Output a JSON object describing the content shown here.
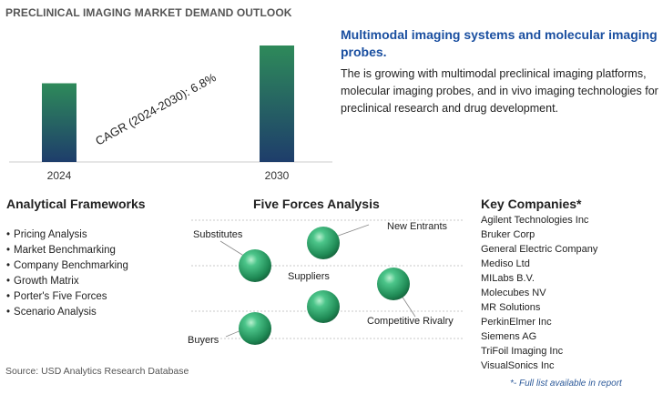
{
  "title": "PRECLINICAL IMAGING MARKET DEMAND OUTLOOK",
  "headline": "Multimodal imaging systems and molecular imaging probes.",
  "description": "The is growing with multimodal preclinical imaging platforms, molecular imaging probes, and in vivo imaging technologies for preclinical research and drug development.",
  "chart_data": {
    "type": "bar",
    "categories": [
      "2024",
      "2030"
    ],
    "values": [
      1.0,
      1.48
    ],
    "title": "",
    "xlabel": "",
    "ylabel": "",
    "annotation": {
      "label": "CAGR (2024-2030):",
      "value": "6.8%"
    },
    "colors": {
      "bar_top": "#2e8a5a",
      "bar_bottom": "#1e3d6b"
    }
  },
  "frameworks": {
    "title": "Analytical Frameworks",
    "items": [
      "Pricing Analysis",
      "Market Benchmarking",
      "Company Benchmarking",
      "Growth Matrix",
      "Porter's Five Forces",
      "Scenario Analysis"
    ]
  },
  "five_forces": {
    "title": "Five Forces Analysis",
    "labels": {
      "substitutes": "Substitutes",
      "new_entrants": "New Entrants",
      "suppliers": "Suppliers",
      "competitive_rivalry": "Competitive Rivalry",
      "buyers": "Buyers"
    },
    "sphere_color": "#2ea36a"
  },
  "companies": {
    "title": "Key Companies*",
    "items": [
      "Agilent Technologies Inc",
      "Bruker Corp",
      "General Electric Company",
      "Mediso Ltd",
      "MILabs B.V.",
      "Molecubes NV",
      "MR Solutions",
      "PerkinElmer Inc",
      "Siemens AG",
      "TriFoil Imaging Inc",
      "VisualSonics Inc"
    ],
    "footnote": "*- Full list available in report"
  },
  "source": "Source: USD Analytics Research Database"
}
